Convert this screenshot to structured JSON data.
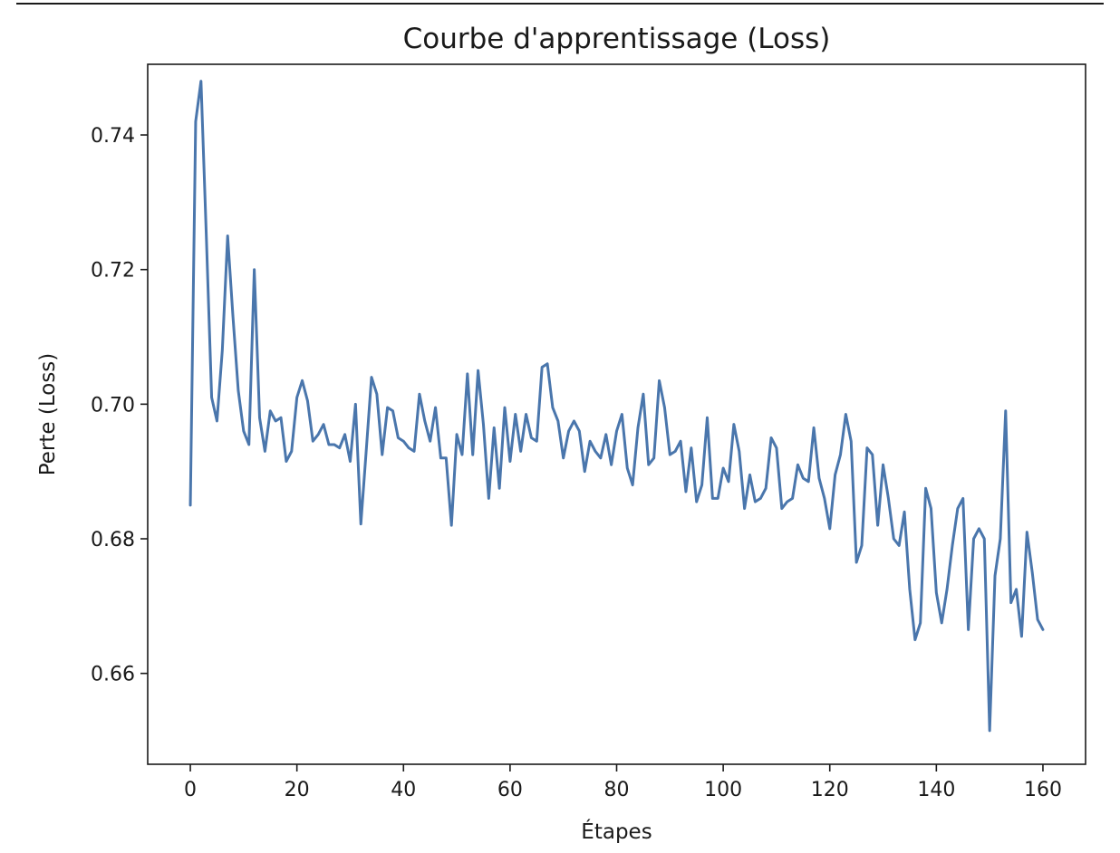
{
  "chart_data": {
    "type": "line",
    "title": "Courbe d'apprentissage (Loss)",
    "xlabel": "Étapes",
    "ylabel": "Perte (Loss)",
    "xlim": [
      -8,
      168
    ],
    "ylim": [
      0.6465,
      0.7505
    ],
    "xticks": [
      0,
      20,
      40,
      60,
      80,
      100,
      120,
      140,
      160
    ],
    "xtick_labels": [
      "0",
      "20",
      "40",
      "60",
      "80",
      "100",
      "120",
      "140",
      "160"
    ],
    "yticks": [
      0.66,
      0.68,
      0.7,
      0.72,
      0.74
    ],
    "ytick_labels": [
      "0.66",
      "0.68",
      "0.70",
      "0.72",
      "0.74"
    ],
    "grid": false,
    "series": [
      {
        "color": "#4a76ac",
        "x": [
          0,
          1,
          2,
          3,
          4,
          5,
          6,
          7,
          8,
          9,
          10,
          11,
          12,
          13,
          14,
          15,
          16,
          17,
          18,
          19,
          20,
          21,
          22,
          23,
          24,
          25,
          26,
          27,
          28,
          29,
          30,
          31,
          32,
          33,
          34,
          35,
          36,
          37,
          38,
          39,
          40,
          41,
          42,
          43,
          44,
          45,
          46,
          47,
          48,
          49,
          50,
          51,
          52,
          53,
          54,
          55,
          56,
          57,
          58,
          59,
          60,
          61,
          62,
          63,
          64,
          65,
          66,
          67,
          68,
          69,
          70,
          71,
          72,
          73,
          74,
          75,
          76,
          77,
          78,
          79,
          80,
          81,
          82,
          83,
          84,
          85,
          86,
          87,
          88,
          89,
          90,
          91,
          92,
          93,
          94,
          95,
          96,
          97,
          98,
          99,
          100,
          101,
          102,
          103,
          104,
          105,
          106,
          107,
          108,
          109,
          110,
          111,
          112,
          113,
          114,
          115,
          116,
          117,
          118,
          119,
          120,
          121,
          122,
          123,
          124,
          125,
          126,
          127,
          128,
          129,
          130,
          131,
          132,
          133,
          134,
          135,
          136,
          137,
          138,
          139,
          140,
          141,
          142,
          143,
          144,
          145,
          146,
          147,
          148,
          149,
          150,
          151,
          152,
          153,
          154,
          155,
          156,
          157,
          158,
          159,
          160
        ],
        "y": [
          0.685,
          0.742,
          0.748,
          0.725,
          0.701,
          0.6975,
          0.708,
          0.725,
          0.713,
          0.702,
          0.696,
          0.694,
          0.72,
          0.698,
          0.693,
          0.699,
          0.6975,
          0.698,
          0.6915,
          0.693,
          0.701,
          0.7035,
          0.7005,
          0.6945,
          0.6955,
          0.697,
          0.694,
          0.694,
          0.6935,
          0.6955,
          0.6915,
          0.7,
          0.6822,
          0.693,
          0.704,
          0.7015,
          0.6925,
          0.6995,
          0.699,
          0.695,
          0.6945,
          0.6935,
          0.693,
          0.7015,
          0.6975,
          0.6945,
          0.6995,
          0.692,
          0.692,
          0.682,
          0.6955,
          0.6925,
          0.7045,
          0.6925,
          0.705,
          0.697,
          0.686,
          0.6965,
          0.6875,
          0.6995,
          0.6915,
          0.6985,
          0.693,
          0.6985,
          0.695,
          0.6945,
          0.7055,
          0.706,
          0.6995,
          0.6975,
          0.692,
          0.696,
          0.6975,
          0.696,
          0.69,
          0.6945,
          0.693,
          0.692,
          0.6955,
          0.691,
          0.696,
          0.6985,
          0.6905,
          0.688,
          0.6965,
          0.7015,
          0.691,
          0.692,
          0.7035,
          0.6995,
          0.6925,
          0.693,
          0.6945,
          0.687,
          0.6935,
          0.6855,
          0.688,
          0.698,
          0.686,
          0.686,
          0.6905,
          0.6885,
          0.697,
          0.693,
          0.6845,
          0.6895,
          0.6855,
          0.686,
          0.6875,
          0.695,
          0.6935,
          0.6845,
          0.6855,
          0.686,
          0.691,
          0.689,
          0.6885,
          0.6965,
          0.689,
          0.686,
          0.6815,
          0.6895,
          0.6925,
          0.6985,
          0.6945,
          0.6765,
          0.679,
          0.6935,
          0.6925,
          0.682,
          0.691,
          0.686,
          0.68,
          0.679,
          0.684,
          0.6725,
          0.665,
          0.6675,
          0.6875,
          0.6845,
          0.672,
          0.6675,
          0.6725,
          0.679,
          0.6845,
          0.686,
          0.6665,
          0.68,
          0.6815,
          0.68,
          0.6515,
          0.6745,
          0.68,
          0.699,
          0.6705,
          0.6725,
          0.6655,
          0.681,
          0.675,
          0.668,
          0.6665
        ]
      }
    ]
  }
}
